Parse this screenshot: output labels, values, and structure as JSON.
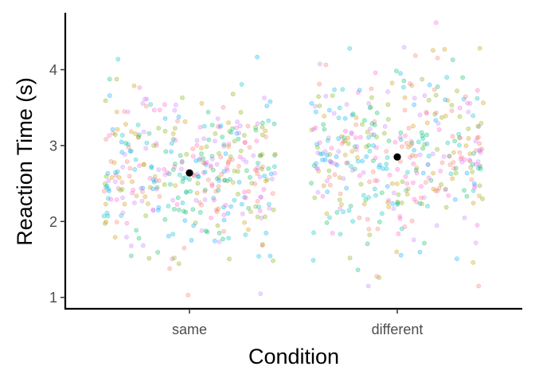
{
  "chart_data": {
    "type": "scatter",
    "subtype": "jitter-strip-with-means",
    "title": "",
    "xlabel": "Condition",
    "ylabel": "Reaction Time (s)",
    "categories": [
      "same",
      "different"
    ],
    "ylim": [
      0.85,
      4.75
    ],
    "yticks": [
      1,
      2,
      3,
      4
    ],
    "grid": false,
    "legend": "none",
    "point_colors": [
      "#F8766D",
      "#CD9600",
      "#7CAE00",
      "#00BE67",
      "#00BFC4",
      "#00A9FF",
      "#C77CFF",
      "#FF61CC"
    ],
    "point_alpha": 0.3,
    "mean_color": "#000000",
    "means": [
      {
        "category": "same",
        "value": 2.64
      },
      {
        "category": "different",
        "value": 2.85
      }
    ],
    "points_per_category": 400,
    "distribution_shown": {
      "same": {
        "center": 2.64,
        "spread": 0.55,
        "range": [
          1.03,
          4.35
        ]
      },
      "different": {
        "center": 2.85,
        "spread": 0.6,
        "range": [
          1.15,
          4.62
        ]
      }
    }
  }
}
